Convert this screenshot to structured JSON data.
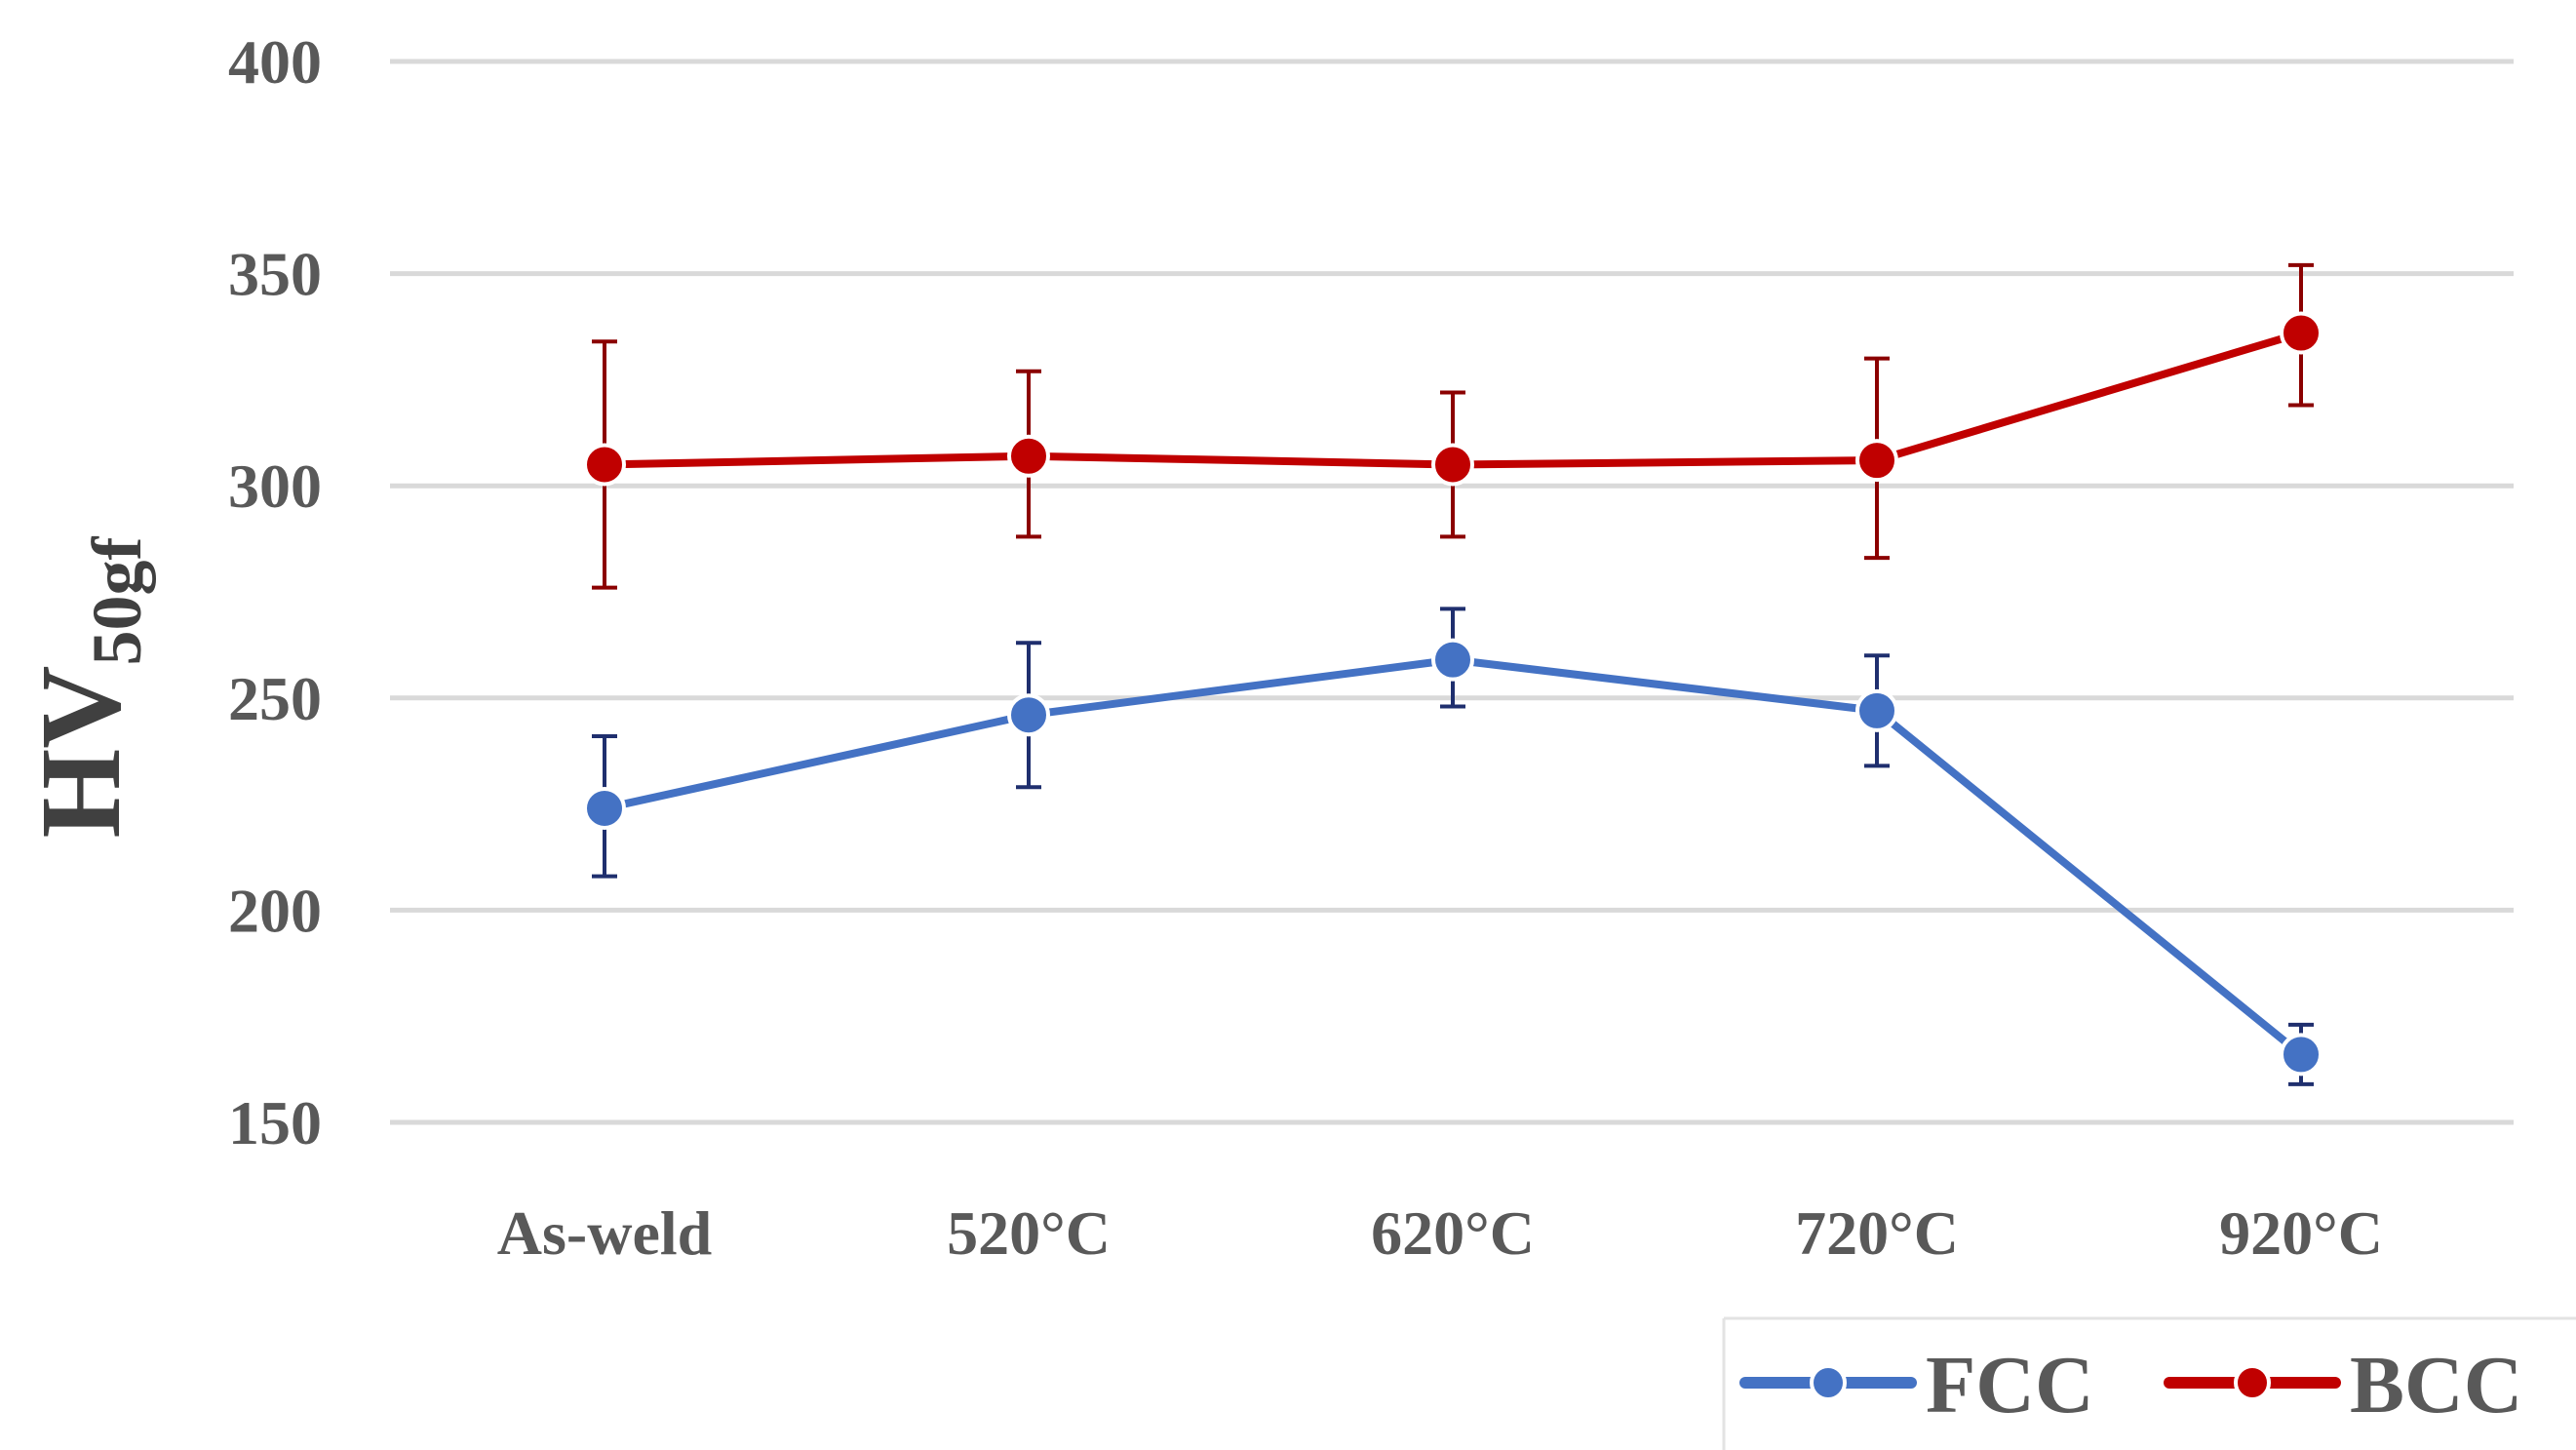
{
  "chart_data": {
    "type": "line",
    "title": "",
    "xlabel": "",
    "ylabel": "HV",
    "ylabel_subscript": "50gf",
    "categories": [
      "As-weld",
      "520°C",
      "620°C",
      "720°C",
      "920°C"
    ],
    "ylim": [
      150,
      400
    ],
    "yticks": [
      150,
      200,
      250,
      300,
      350,
      400
    ],
    "grid": true,
    "legend_position": "bottom-right",
    "series": [
      {
        "name": "FCC",
        "color": "#4472C4",
        "error_color": "#1F2F6E",
        "values": [
          224,
          246,
          259,
          247,
          166
        ],
        "err_low": [
          208,
          229,
          248,
          234,
          159
        ],
        "err_high": [
          241,
          263,
          271,
          260,
          173
        ]
      },
      {
        "name": "BCC",
        "color": "#C00000",
        "error_color": "#8B0000",
        "values": [
          305,
          307,
          305,
          306,
          336
        ],
        "err_low": [
          276,
          288,
          288,
          283,
          319
        ],
        "err_high": [
          334,
          327,
          322,
          330,
          352
        ]
      }
    ]
  }
}
